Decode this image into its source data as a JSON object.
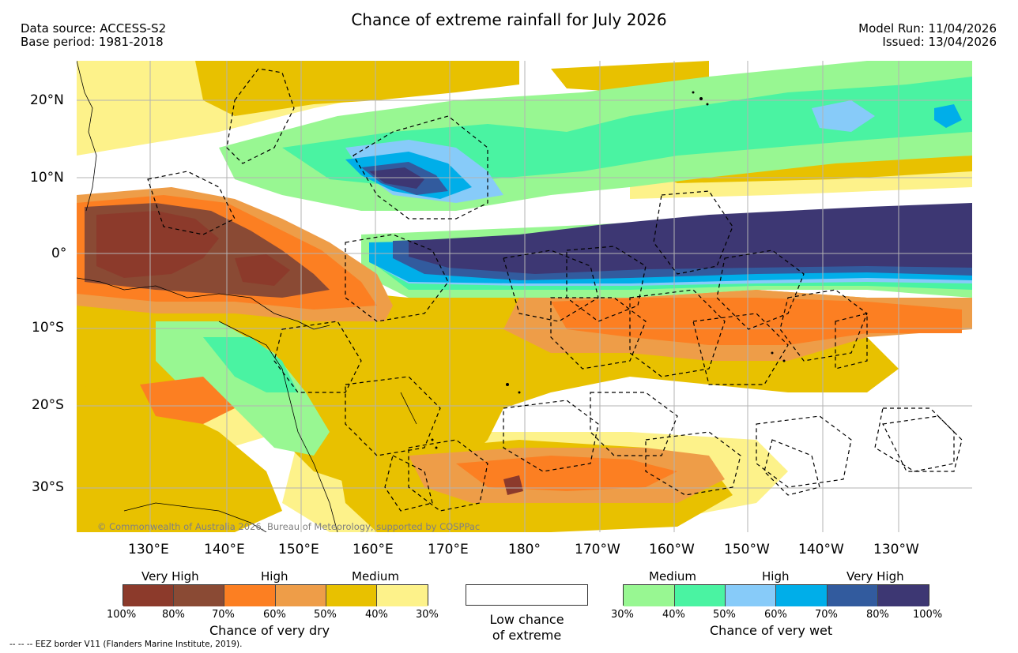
{
  "header": {
    "title": "Chance of extreme rainfall for July 2026",
    "data_source": "Data source: ACCESS-S2",
    "base_period": "Base period: 1981-2018",
    "model_run": "Model Run: 11/04/2026",
    "issued": "Issued: 13/04/2026"
  },
  "map": {
    "lat_labels": [
      "20°N",
      "10°N",
      "0°",
      "10°S",
      "20°S",
      "30°S"
    ],
    "lon_labels": [
      "130°E",
      "140°E",
      "150°E",
      "160°E",
      "170°E",
      "180°",
      "170°W",
      "160°W",
      "150°W",
      "140°W",
      "130°W"
    ],
    "copyright": "© Commonwealth of Australia 2026, Bureau of Meteorology, supported by COSPPac"
  },
  "legend_dry": {
    "category_labels": [
      "Very High",
      "High",
      "Medium"
    ],
    "tick_labels": [
      "100%",
      "80%",
      "70%",
      "60%",
      "50%",
      "40%",
      "30%"
    ],
    "caption": "Chance of very dry",
    "colors": [
      "#8c3a2b",
      "#8a4a34",
      "#fc7f22",
      "#ee9d48",
      "#e8c100",
      "#fdf28a"
    ]
  },
  "legend_low": {
    "caption_line1": "Low chance",
    "caption_line2": "of extreme"
  },
  "legend_wet": {
    "category_labels": [
      "Medium",
      "High",
      "Very High"
    ],
    "tick_labels": [
      "30%",
      "40%",
      "50%",
      "60%",
      "70%",
      "80%",
      "100%"
    ],
    "caption": "Chance of very wet",
    "colors": [
      "#98f792",
      "#4af3a2",
      "#87cbf9",
      "#00aee9",
      "#325b9e",
      "#3d3773"
    ]
  },
  "footnote": "--  --  -- EEZ border V11 (Flanders Marine Institute, 2019)."
}
